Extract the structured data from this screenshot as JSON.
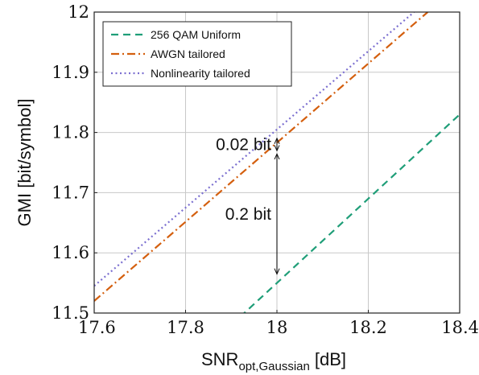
{
  "chart_data": {
    "type": "line",
    "xlabel": "SNR",
    "xlabel_subscript": "opt,Gaussian",
    "xlabel_unit": "[dB]",
    "ylabel": "GMI [bit/symbol]",
    "xlim": [
      17.6,
      18.4
    ],
    "ylim": [
      11.5,
      12.0
    ],
    "x_ticks": [
      "17.6",
      "17.8",
      "18",
      "18.2",
      "18.4"
    ],
    "y_ticks": [
      "11.5",
      "11.6",
      "11.7",
      "11.8",
      "11.9",
      "12"
    ],
    "grid": true,
    "legend_position": "top-left",
    "series": [
      {
        "name": "256 QAM Uniform",
        "color": "#1f9e78",
        "dash": "dashed",
        "x": [
          17.9,
          18.4
        ],
        "y": [
          11.48,
          11.83
        ]
      },
      {
        "name": "AWGN tailored",
        "color": "#d45f0e",
        "dash": "dashdot",
        "x": [
          17.6,
          18.33
        ],
        "y": [
          11.52,
          12.0
        ]
      },
      {
        "name": "Nonlinearity tailored",
        "color": "#7b6fd0",
        "dash": "dotted",
        "x": [
          17.6,
          18.3
        ],
        "y": [
          11.545,
          12.0
        ]
      }
    ],
    "annotations": [
      {
        "text": "0.02 bit",
        "x": 18.0,
        "y_from": 11.767,
        "y_to": 11.793
      },
      {
        "text": "0.2 bit",
        "x": 18.0,
        "y_from": 11.562,
        "y_to": 11.767
      }
    ]
  }
}
